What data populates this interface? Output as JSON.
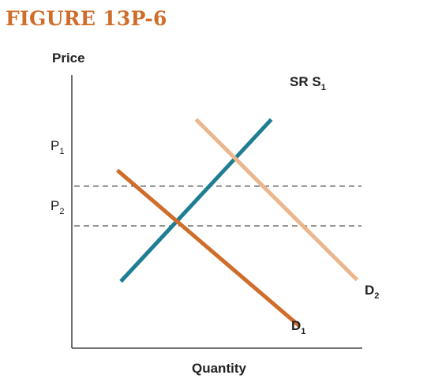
{
  "figure_title": "FIGURE 13P-6",
  "chart_data": {
    "type": "line",
    "ylabel": "Price",
    "xlabel": "Quantity",
    "y_ticks": [
      {
        "main": "P",
        "sub": "1"
      },
      {
        "main": "P",
        "sub": "2"
      }
    ],
    "series": [
      {
        "name": "SR S",
        "name_sub": "1",
        "color": "#1f7d94",
        "points": [
          [
            1.0,
            1.0
          ],
          [
            9.6,
            11.2
          ]
        ]
      },
      {
        "name": "D",
        "name_sub": "1",
        "color": "#cf6d2a",
        "points": [
          [
            0.8,
            8.0
          ],
          [
            11.2,
            -1.8
          ]
        ]
      },
      {
        "name": "D",
        "name_sub": "2",
        "color": "#ecb68c",
        "points": [
          [
            5.3,
            11.2
          ],
          [
            14.5,
            1.1
          ]
        ]
      }
    ],
    "reference_lines": [
      {
        "label": "P1",
        "y": 7.0
      },
      {
        "label": "P2",
        "y": 4.5
      }
    ],
    "xlim": [
      -1.8,
      14.8
    ],
    "ylim": [
      -3.2,
      14.0
    ],
    "grid": false,
    "legend": "none"
  },
  "colors": {
    "title": "#cf6d2a",
    "axis": "#222222",
    "dashes": "#333333"
  }
}
